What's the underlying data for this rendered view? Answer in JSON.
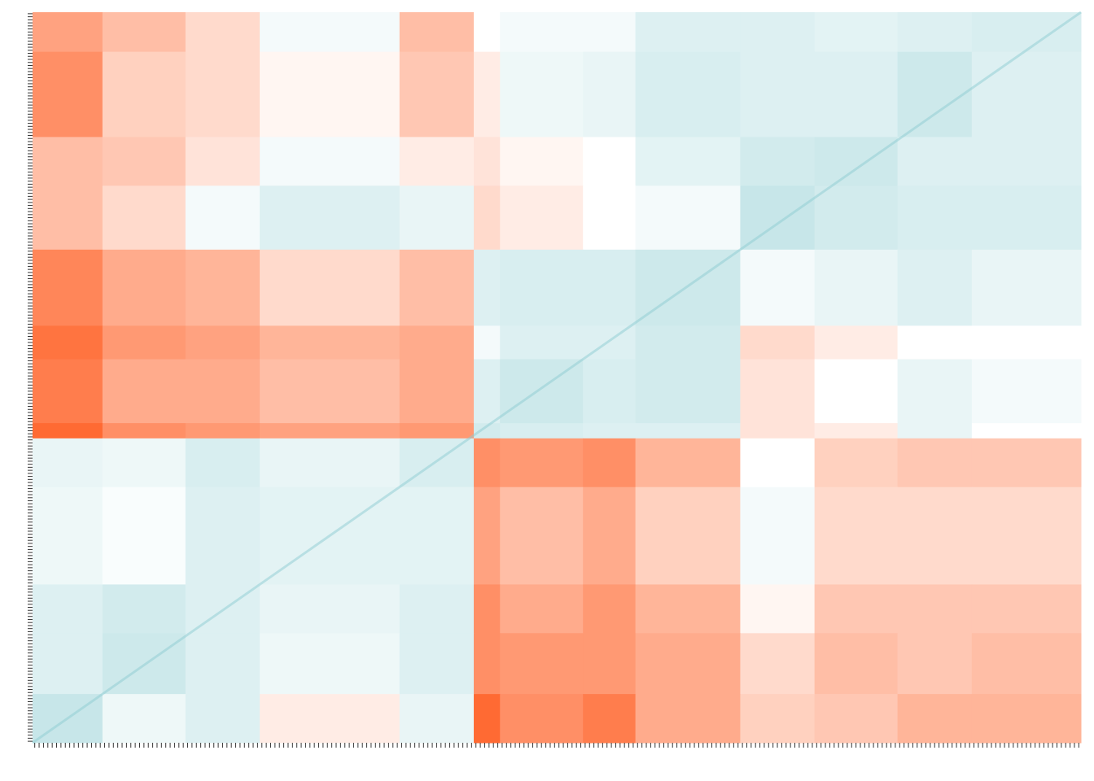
{
  "chart_data": {
    "type": "heatmap",
    "zlim": [
      -1,
      1
    ],
    "colorscale": [
      "#8fcdd3",
      "#ffffff",
      "#ff4500"
    ],
    "row_counts": [
      13,
      28,
      16,
      21,
      25,
      11,
      21,
      5,
      16,
      32,
      16,
      20,
      16
    ],
    "col_counts": [
      16,
      19,
      17,
      32,
      17,
      6,
      19,
      12,
      24,
      17,
      19,
      17,
      25
    ],
    "values": [
      [
        0.5,
        0.35,
        0.2,
        -0.1,
        0.35,
        0.0,
        -0.1,
        -0.1,
        -0.3,
        -0.3,
        -0.25,
        -0.3,
        -0.35
      ],
      [
        0.6,
        0.25,
        0.2,
        0.05,
        0.3,
        0.1,
        -0.15,
        -0.2,
        -0.35,
        -0.3,
        -0.3,
        -0.45,
        -0.3
      ],
      [
        0.35,
        0.3,
        0.15,
        -0.1,
        0.1,
        0.15,
        0.05,
        0.0,
        -0.25,
        -0.4,
        -0.45,
        -0.3,
        -0.3
      ],
      [
        0.35,
        0.2,
        -0.1,
        -0.3,
        -0.2,
        0.2,
        0.1,
        0.0,
        -0.1,
        -0.5,
        -0.4,
        -0.35,
        -0.35
      ],
      [
        0.65,
        0.45,
        0.4,
        0.2,
        0.35,
        -0.3,
        -0.35,
        -0.35,
        -0.45,
        -0.1,
        -0.2,
        -0.3,
        -0.2
      ],
      [
        0.75,
        0.55,
        0.5,
        0.4,
        0.45,
        -0.1,
        -0.3,
        -0.3,
        -0.4,
        0.2,
        0.1,
        0.0,
        0.0
      ],
      [
        0.7,
        0.45,
        0.45,
        0.35,
        0.45,
        -0.3,
        -0.45,
        -0.35,
        -0.4,
        0.15,
        0.0,
        -0.2,
        -0.1
      ],
      [
        0.8,
        0.6,
        0.55,
        0.5,
        0.55,
        -0.4,
        -0.35,
        -0.3,
        -0.3,
        0.15,
        0.1,
        -0.2,
        0.0
      ],
      [
        -0.2,
        -0.15,
        -0.35,
        -0.2,
        -0.35,
        0.6,
        0.55,
        0.6,
        0.4,
        0.0,
        0.25,
        0.3,
        0.3
      ],
      [
        -0.15,
        -0.05,
        -0.3,
        -0.25,
        -0.25,
        0.5,
        0.35,
        0.45,
        0.25,
        -0.1,
        0.2,
        0.2,
        0.2
      ],
      [
        -0.3,
        -0.4,
        -0.3,
        -0.2,
        -0.3,
        0.6,
        0.45,
        0.55,
        0.4,
        0.05,
        0.3,
        0.3,
        0.3
      ],
      [
        -0.3,
        -0.45,
        -0.3,
        -0.15,
        -0.3,
        0.6,
        0.55,
        0.55,
        0.45,
        0.2,
        0.35,
        0.3,
        0.35
      ],
      [
        -0.5,
        -0.15,
        -0.3,
        0.1,
        -0.2,
        0.8,
        0.6,
        0.7,
        0.45,
        0.25,
        0.3,
        0.4,
        0.4
      ]
    ]
  }
}
